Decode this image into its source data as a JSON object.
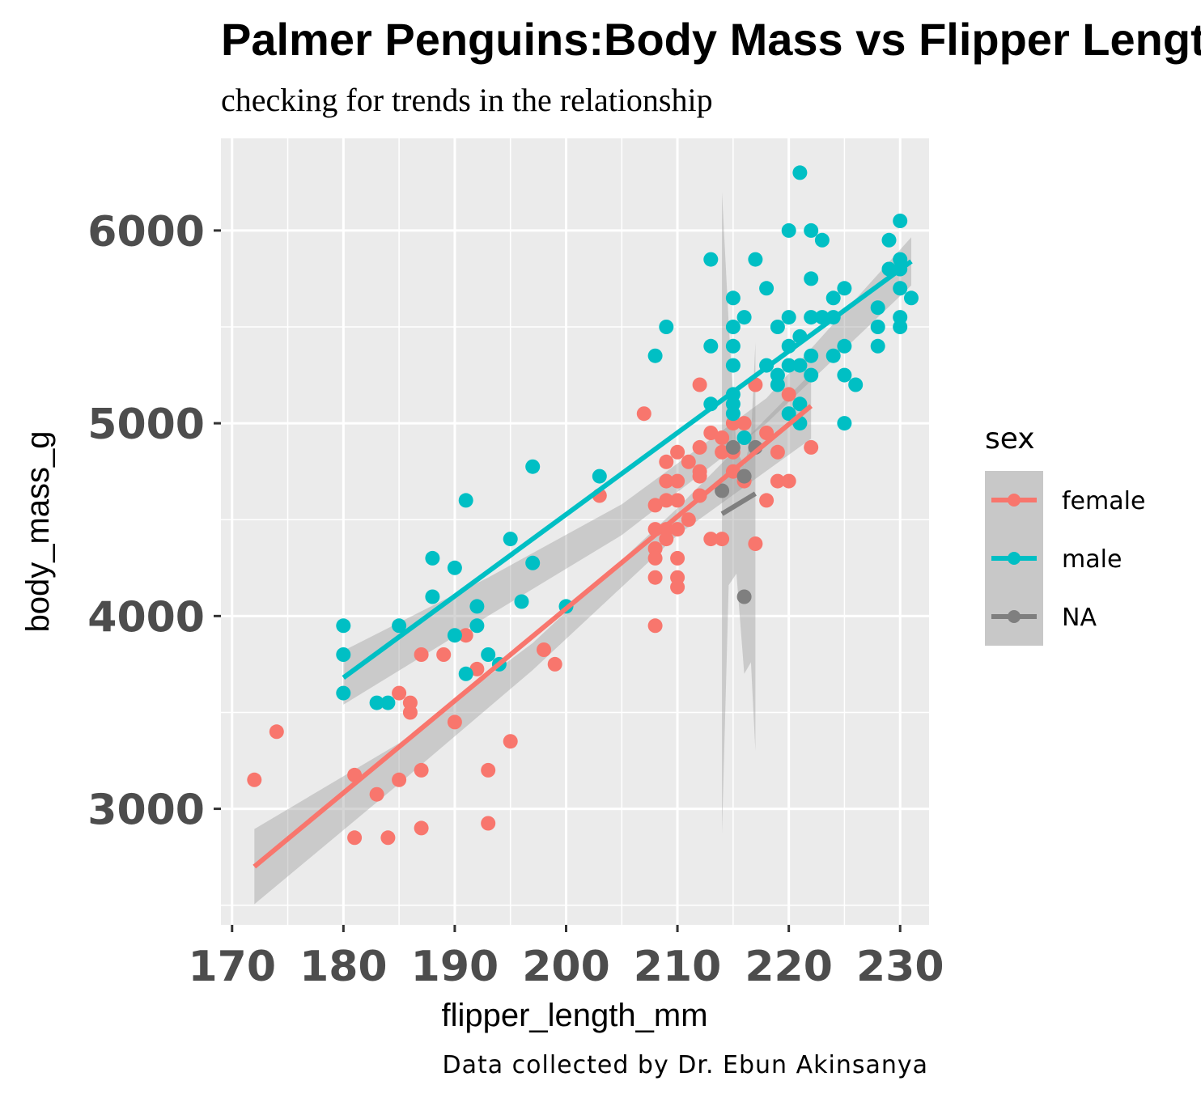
{
  "chart_data": {
    "type": "scatter",
    "title": "Palmer Penguins:Body Mass vs Flipper Length",
    "subtitle": "checking for trends in the relationship",
    "caption": "Data collected by Dr. Ebun Akinsanya",
    "xlabel": "flipper_length_mm",
    "ylabel": "body_mass_g",
    "xlim": [
      169,
      232.6
    ],
    "ylim": [
      2398,
      6478
    ],
    "x_ticks": [
      170,
      180,
      190,
      200,
      210,
      220,
      230
    ],
    "y_ticks": [
      3000,
      4000,
      5000,
      6000
    ],
    "grid": true,
    "legend": {
      "title": "sex",
      "position": "right"
    },
    "series": [
      {
        "name": "female",
        "color": "#F8766D",
        "points": [
          [
            172,
            3150
          ],
          [
            174,
            3400
          ],
          [
            181,
            3175
          ],
          [
            181,
            2850
          ],
          [
            183,
            3075
          ],
          [
            184,
            2850
          ],
          [
            185,
            3150
          ],
          [
            185,
            3600
          ],
          [
            186,
            3550
          ],
          [
            186,
            3500
          ],
          [
            187,
            2900
          ],
          [
            187,
            3200
          ],
          [
            187,
            3800
          ],
          [
            189,
            3800
          ],
          [
            190,
            3450
          ],
          [
            191,
            3900
          ],
          [
            192,
            3725
          ],
          [
            193,
            3200
          ],
          [
            193,
            2925
          ],
          [
            195,
            3350
          ],
          [
            198,
            3825
          ],
          [
            199,
            3750
          ],
          [
            203,
            4625
          ],
          [
            207,
            5050
          ],
          [
            208,
            4575
          ],
          [
            208,
            4450
          ],
          [
            208,
            4350
          ],
          [
            208,
            4300
          ],
          [
            208,
            4200
          ],
          [
            208,
            3950
          ],
          [
            209,
            4800
          ],
          [
            209,
            4700
          ],
          [
            209,
            4600
          ],
          [
            209,
            4450
          ],
          [
            209,
            4400
          ],
          [
            210,
            4850
          ],
          [
            210,
            4700
          ],
          [
            210,
            4600
          ],
          [
            210,
            4450
          ],
          [
            210,
            4300
          ],
          [
            210,
            4200
          ],
          [
            210,
            4150
          ],
          [
            211,
            4800
          ],
          [
            211,
            4500
          ],
          [
            212,
            5200
          ],
          [
            212,
            4875
          ],
          [
            212,
            4750
          ],
          [
            212,
            4725
          ],
          [
            212,
            4625
          ],
          [
            213,
            4950
          ],
          [
            213,
            4400
          ],
          [
            214,
            4925
          ],
          [
            214,
            4850
          ],
          [
            214,
            4400
          ],
          [
            215,
            5000
          ],
          [
            215,
            4850
          ],
          [
            215,
            4750
          ],
          [
            216,
            5000
          ],
          [
            216,
            4700
          ],
          [
            217,
            5200
          ],
          [
            217,
            4375
          ],
          [
            218,
            4950
          ],
          [
            218,
            4600
          ],
          [
            219,
            4850
          ],
          [
            219,
            4700
          ],
          [
            220,
            5150
          ],
          [
            220,
            4700
          ],
          [
            222,
            4875
          ]
        ],
        "trend": {
          "x": [
            172,
            222
          ],
          "y": [
            2700,
            5090
          ]
        }
      },
      {
        "name": "male",
        "color": "#00BFC4",
        "points": [
          [
            180,
            3950
          ],
          [
            180,
            3800
          ],
          [
            180,
            3600
          ],
          [
            183,
            3550
          ],
          [
            184,
            3550
          ],
          [
            185,
            3950
          ],
          [
            188,
            4300
          ],
          [
            188,
            4100
          ],
          [
            190,
            4250
          ],
          [
            190,
            3900
          ],
          [
            191,
            4600
          ],
          [
            191,
            3700
          ],
          [
            192,
            4050
          ],
          [
            192,
            3950
          ],
          [
            193,
            3800
          ],
          [
            194,
            3750
          ],
          [
            195,
            4400
          ],
          [
            196,
            4075
          ],
          [
            197,
            4775
          ],
          [
            197,
            4275
          ],
          [
            200,
            4050
          ],
          [
            203,
            4725
          ],
          [
            208,
            5350
          ],
          [
            209,
            5500
          ],
          [
            213,
            5850
          ],
          [
            213,
            5400
          ],
          [
            213,
            5100
          ],
          [
            215,
            5650
          ],
          [
            215,
            5500
          ],
          [
            215,
            5400
          ],
          [
            215,
            5300
          ],
          [
            215,
            5150
          ],
          [
            215,
            5100
          ],
          [
            215,
            5050
          ],
          [
            216,
            5550
          ],
          [
            216,
            4925
          ],
          [
            217,
            5850
          ],
          [
            218,
            5700
          ],
          [
            218,
            5300
          ],
          [
            219,
            5500
          ],
          [
            219,
            5250
          ],
          [
            219,
            5200
          ],
          [
            220,
            6000
          ],
          [
            220,
            5550
          ],
          [
            220,
            5400
          ],
          [
            220,
            5300
          ],
          [
            220,
            5050
          ],
          [
            221,
            6300
          ],
          [
            221,
            5450
          ],
          [
            221,
            5300
          ],
          [
            221,
            5100
          ],
          [
            221,
            5000
          ],
          [
            222,
            6000
          ],
          [
            222,
            5750
          ],
          [
            222,
            5550
          ],
          [
            222,
            5350
          ],
          [
            222,
            5250
          ],
          [
            223,
            5950
          ],
          [
            223,
            5550
          ],
          [
            224,
            5650
          ],
          [
            224,
            5550
          ],
          [
            224,
            5350
          ],
          [
            225,
            5700
          ],
          [
            225,
            5400
          ],
          [
            225,
            5250
          ],
          [
            225,
            5000
          ],
          [
            226,
            5200
          ],
          [
            228,
            5600
          ],
          [
            228,
            5500
          ],
          [
            228,
            5400
          ],
          [
            229,
            5950
          ],
          [
            229,
            5800
          ],
          [
            230,
            6050
          ],
          [
            230,
            5850
          ],
          [
            230,
            5800
          ],
          [
            230,
            5700
          ],
          [
            230,
            5550
          ],
          [
            230,
            5500
          ],
          [
            231,
            5650
          ]
        ],
        "trend": {
          "x": [
            180,
            231
          ],
          "y": [
            3680,
            5840
          ]
        }
      },
      {
        "name": "NA",
        "color": "#7F7F7F",
        "points": [
          [
            214,
            4650
          ],
          [
            215,
            4875
          ],
          [
            216,
            4725
          ],
          [
            216,
            4100
          ],
          [
            217,
            4875
          ]
        ],
        "trend": {
          "x": [
            214,
            217
          ],
          "y": [
            4530,
            4635
          ]
        }
      }
    ],
    "confidence_bands": [
      {
        "series": "female",
        "x": [
          172,
          185,
          197,
          210,
          222
        ],
        "lower": [
          2505,
          3130,
          3720,
          4420,
          4920
        ],
        "upper": [
          2895,
          3340,
          3860,
          4560,
          5260
        ]
      },
      {
        "series": "male",
        "x": [
          180,
          193,
          205,
          218,
          231
        ],
        "lower": [
          3540,
          4000,
          4420,
          5000,
          5715
        ],
        "upper": [
          3820,
          4200,
          4580,
          5130,
          5965
        ]
      },
      {
        "series": "NA",
        "x": [
          214,
          214.6,
          215.3,
          216,
          216.6,
          217
        ],
        "lower": [
          2870,
          4160,
          4220,
          3700,
          3760,
          3300
        ],
        "upper": [
          6200,
          5520,
          4860,
          4780,
          4920,
          5420
        ]
      }
    ]
  }
}
